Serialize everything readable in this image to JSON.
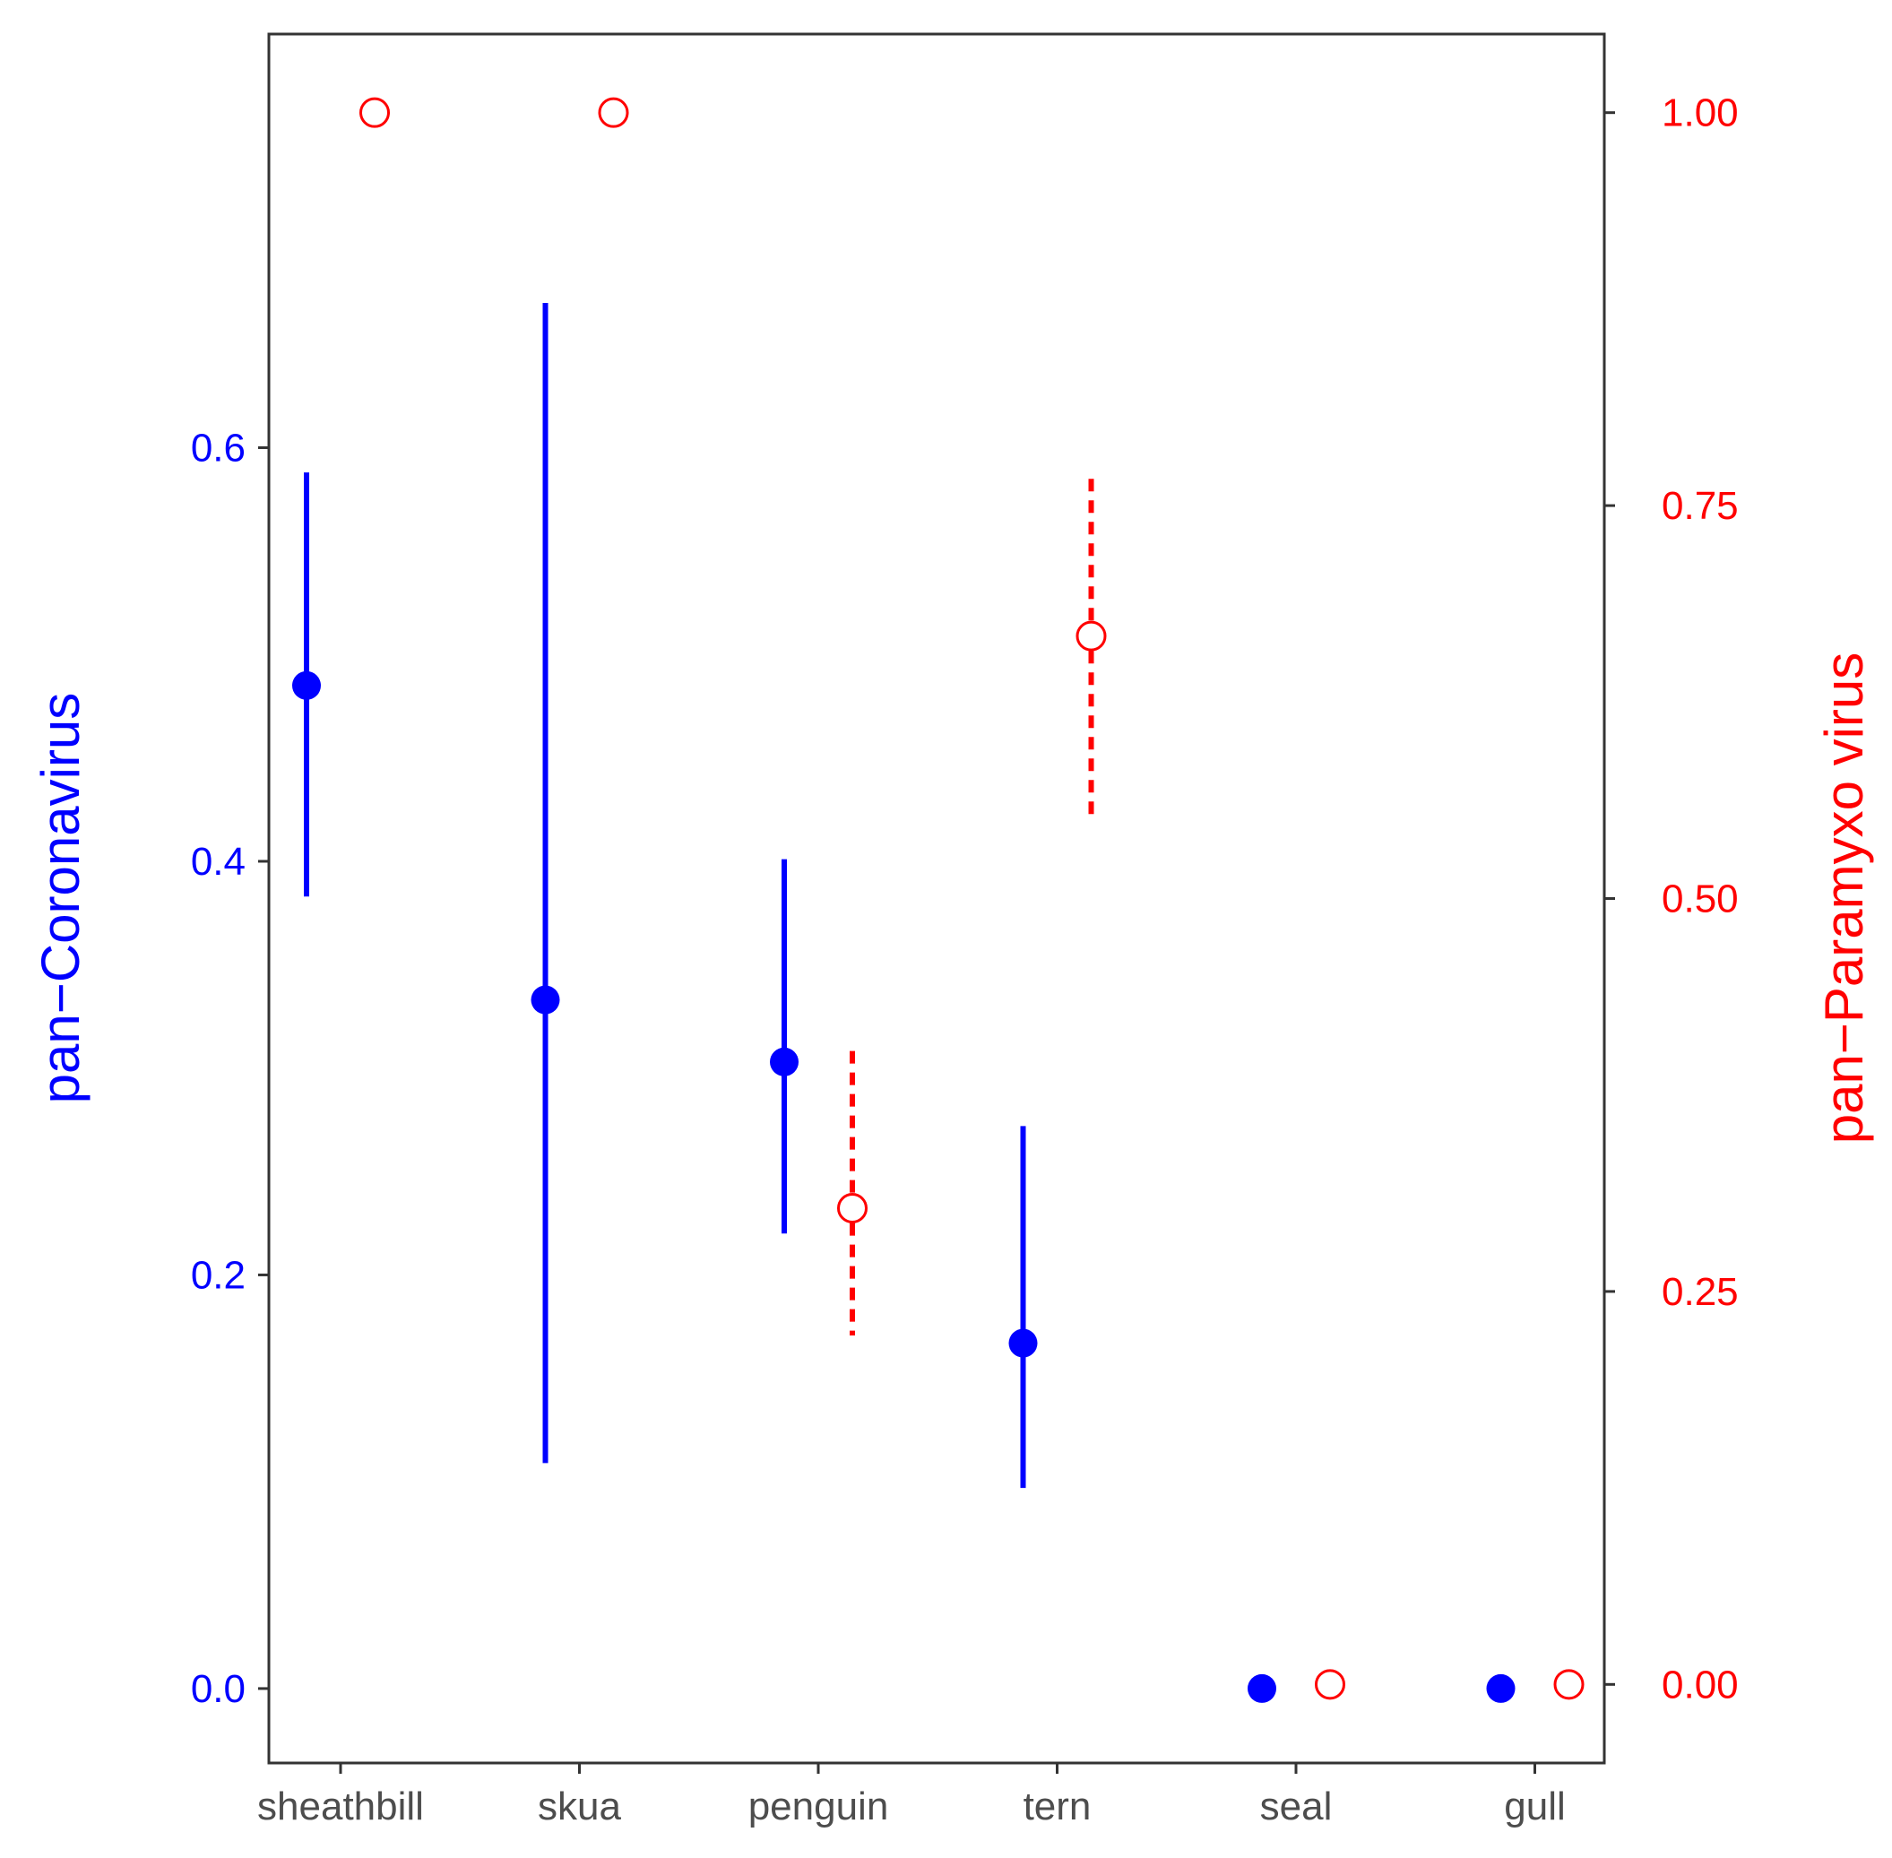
{
  "chart_data": {
    "type": "scatter",
    "categories": [
      "sheathbill",
      "skua",
      "penguin",
      "tern",
      "seal",
      "gull"
    ],
    "ylabel_left": "pan−Coronavirus",
    "ylabel_right": "pan−Paramyxo virus",
    "y_left_ticks": [
      "0.0",
      "0.2",
      "0.4",
      "0.6"
    ],
    "y_right_ticks": [
      "0.00",
      "0.25",
      "0.50",
      "0.75",
      "1.00"
    ],
    "y_left_range": [
      -0.036,
      0.8
    ],
    "y_right_range": [
      -0.05,
      1.05
    ],
    "grid": false,
    "colors": {
      "left": "#0000ff",
      "right": "#ff0000",
      "axis": "#333333",
      "tick_text": "#4d4d4d"
    },
    "series": [
      {
        "name": "pan−Coronavirus",
        "axis": "left",
        "marker": "filled-circle",
        "errorbar_style": "solid",
        "values": [
          0.485,
          0.333,
          0.303,
          0.167,
          0.0,
          0.0
        ],
        "lower": [
          0.383,
          0.109,
          0.22,
          0.097,
          null,
          null
        ],
        "upper": [
          0.588,
          0.67,
          0.401,
          0.272,
          null,
          null
        ]
      },
      {
        "name": "pan−Paramyxo virus",
        "axis": "right",
        "marker": "open-circle",
        "errorbar_style": "dashed",
        "values": [
          1.0,
          1.0,
          null,
          0.667,
          0.0,
          0.0
        ],
        "values_full": [
          1.0,
          1.0,
          0.303,
          0.667,
          0.0,
          0.0
        ],
        "lower": [
          null,
          null,
          0.222,
          0.55,
          null,
          null
        ],
        "upper": [
          null,
          null,
          0.403,
          0.767,
          null,
          null
        ]
      }
    ]
  }
}
